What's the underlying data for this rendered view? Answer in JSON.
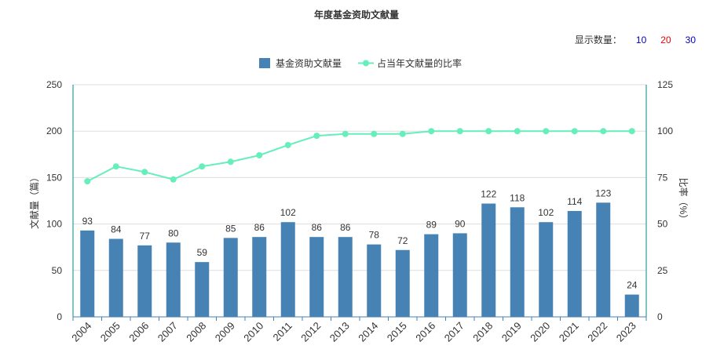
{
  "chart_data": {
    "type": "bar",
    "title": "年度基金资助文献量",
    "categories": [
      "2004",
      "2005",
      "2006",
      "2007",
      "2008",
      "2009",
      "2010",
      "2011",
      "2012",
      "2013",
      "2014",
      "2015",
      "2016",
      "2017",
      "2018",
      "2019",
      "2020",
      "2021",
      "2022",
      "2023"
    ],
    "series": [
      {
        "name": "基金资助文献量",
        "type": "bar",
        "axis": "left",
        "color": "#4682b4",
        "values": [
          93,
          84,
          77,
          80,
          59,
          85,
          86,
          102,
          86,
          86,
          78,
          72,
          89,
          90,
          122,
          118,
          102,
          114,
          123,
          24
        ]
      },
      {
        "name": "占当年文献量的比率",
        "type": "line",
        "axis": "right",
        "color": "#66eebb",
        "values": [
          73,
          81,
          78,
          74,
          81,
          83.5,
          87,
          92.5,
          97.5,
          98.5,
          98.5,
          98.5,
          100,
          100,
          100,
          100,
          100,
          100,
          100,
          100
        ]
      }
    ],
    "ylabel": "文献量（篇）",
    "ylabel_right": "比率（%）",
    "ylim": [
      0,
      250
    ],
    "ylim_right": [
      0,
      125
    ],
    "yticks": [
      0,
      50,
      100,
      150,
      200,
      250
    ],
    "yticks_right": [
      0,
      25,
      50,
      75,
      100,
      125
    ],
    "grid": true,
    "legend": "top-center"
  },
  "controls": {
    "count_label": "显示数量：",
    "options": [
      {
        "label": "10",
        "color": "#0000cc"
      },
      {
        "label": "20",
        "color": "#ee0000"
      },
      {
        "label": "30",
        "color": "#0000cc"
      }
    ]
  }
}
